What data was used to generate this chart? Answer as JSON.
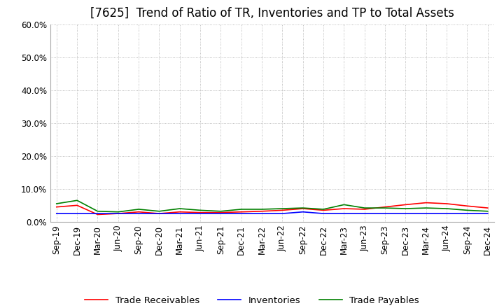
{
  "title": "[7625]  Trend of Ratio of TR, Inventories and TP to Total Assets",
  "x_labels": [
    "Sep-19",
    "Dec-19",
    "Mar-20",
    "Jun-20",
    "Sep-20",
    "Dec-20",
    "Mar-21",
    "Jun-21",
    "Sep-21",
    "Dec-21",
    "Mar-22",
    "Jun-22",
    "Sep-22",
    "Dec-22",
    "Mar-23",
    "Jun-23",
    "Sep-23",
    "Dec-23",
    "Mar-24",
    "Jun-24",
    "Sep-24",
    "Dec-24"
  ],
  "ylim": [
    0.0,
    0.6
  ],
  "yticks": [
    0.0,
    0.1,
    0.2,
    0.3,
    0.4,
    0.5,
    0.6
  ],
  "trade_receivables": [
    0.045,
    0.05,
    0.022,
    0.025,
    0.03,
    0.025,
    0.03,
    0.028,
    0.028,
    0.03,
    0.032,
    0.035,
    0.04,
    0.035,
    0.04,
    0.038,
    0.045,
    0.052,
    0.058,
    0.055,
    0.048,
    0.042
  ],
  "inventories": [
    0.025,
    0.025,
    0.025,
    0.025,
    0.025,
    0.025,
    0.025,
    0.025,
    0.025,
    0.025,
    0.025,
    0.025,
    0.03,
    0.025,
    0.025,
    0.025,
    0.025,
    0.025,
    0.025,
    0.025,
    0.025,
    0.025
  ],
  "trade_payables": [
    0.055,
    0.065,
    0.032,
    0.03,
    0.038,
    0.032,
    0.04,
    0.035,
    0.032,
    0.038,
    0.038,
    0.04,
    0.042,
    0.038,
    0.052,
    0.042,
    0.042,
    0.04,
    0.042,
    0.04,
    0.035,
    0.032
  ],
  "tr_color": "#FF0000",
  "inv_color": "#0000FF",
  "tp_color": "#008000",
  "legend_labels": [
    "Trade Receivables",
    "Inventories",
    "Trade Payables"
  ],
  "background_color": "#FFFFFF",
  "grid_color": "#AAAAAA",
  "title_fontsize": 12,
  "tick_fontsize": 8.5,
  "legend_fontsize": 9.5,
  "linewidth": 1.2
}
